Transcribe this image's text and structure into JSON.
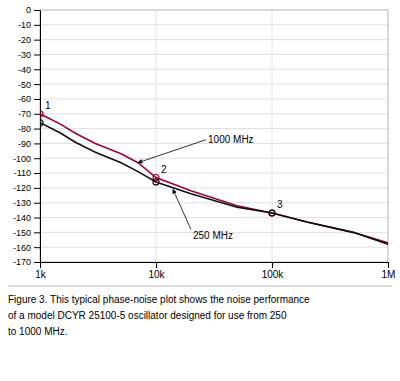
{
  "chart_data": {
    "type": "line",
    "log": "x",
    "grid": true,
    "x": [
      1000,
      1500,
      2000,
      3000,
      5000,
      7000,
      10000,
      20000,
      50000,
      100000,
      200000,
      500000,
      1000000
    ],
    "series": [
      {
        "name": "1000 MHz",
        "color": "#990044",
        "values": [
          -70,
          -77,
          -83,
          -90,
          -97,
          -103,
          -113,
          -122,
          -132,
          -137,
          -143,
          -150,
          -157
        ],
        "callout": {
          "x": 7000,
          "y": -103
        }
      },
      {
        "name": "250 MHz",
        "color": "#111111",
        "values": [
          -76,
          -83,
          -89,
          -96,
          -103,
          -109,
          -116,
          -124,
          -133,
          -137,
          -143,
          -150,
          -158
        ],
        "callout": {
          "x": 14000,
          "y": -121
        }
      }
    ],
    "points": [
      {
        "label": "1",
        "x": 1000,
        "values": [
          -70,
          -76
        ]
      },
      {
        "label": "2",
        "x": 10000,
        "values": [
          -113,
          -116
        ]
      },
      {
        "label": "3",
        "x": 100000,
        "values": [
          -137,
          -137
        ]
      }
    ],
    "xlim": [
      1000,
      1000000
    ],
    "ylim": [
      -170,
      0
    ],
    "xticks": [
      {
        "value": 1000,
        "label": "1k"
      },
      {
        "value": 10000,
        "label": "10k"
      },
      {
        "value": 100000,
        "label": "100k"
      },
      {
        "value": 1000000,
        "label": "1M"
      }
    ],
    "yticks": [
      0,
      -10,
      -20,
      -30,
      -40,
      -50,
      -60,
      -70,
      -80,
      -90,
      -100,
      -110,
      -120,
      -130,
      -140,
      -150,
      -160,
      -170
    ],
    "caption": [
      "Figure 3. This typical phase-noise plot shows the noise performance",
      "of a model DCYR 25100-5 oscillator designed for use from 250",
      "to 1000 MHz."
    ]
  }
}
